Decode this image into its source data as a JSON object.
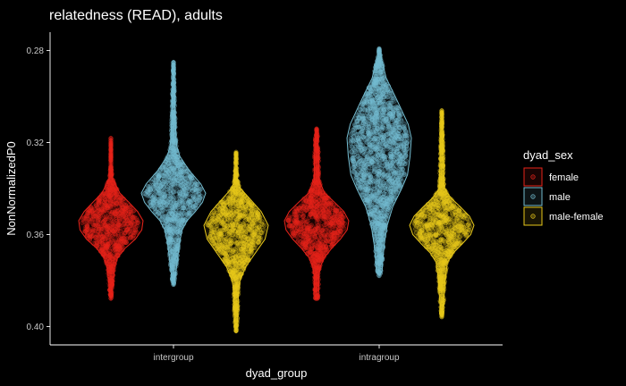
{
  "chart_data": {
    "type": "violin",
    "title": "relatedness (READ), adults",
    "xlabel": "dyad_group",
    "ylabel": "NonNormalizedP0",
    "y_reversed": true,
    "ylim": [
      0.272,
      0.408
    ],
    "yticks": [
      0.28,
      0.32,
      0.36,
      0.4
    ],
    "ytick_labels": [
      "0.28",
      "0.32",
      "0.36",
      "0.40"
    ],
    "categories": [
      "intergroup",
      "intragroup"
    ],
    "grid": false,
    "legend": {
      "title": "dyad_sex",
      "position": "right",
      "entries": [
        "female",
        "male",
        "male-female"
      ]
    },
    "series": [
      {
        "name": "female",
        "color": "#e8231a",
        "violins": [
          {
            "category": "intergroup",
            "profile": [
              [
                0.318,
                0.0
              ],
              [
                0.33,
                0.005
              ],
              [
                0.336,
                0.06
              ],
              [
                0.342,
                0.28
              ],
              [
                0.346,
                0.56
              ],
              [
                0.35,
                0.83
              ],
              [
                0.354,
                1.0
              ],
              [
                0.358,
                0.96
              ],
              [
                0.362,
                0.76
              ],
              [
                0.366,
                0.44
              ],
              [
                0.37,
                0.21
              ],
              [
                0.374,
                0.12
              ],
              [
                0.378,
                0.09
              ],
              [
                0.382,
                0.06
              ],
              [
                0.386,
                0.04
              ],
              [
                0.388,
                0.0
              ]
            ]
          },
          {
            "category": "intragroup",
            "profile": [
              [
                0.314,
                0.0
              ],
              [
                0.318,
                0.05
              ],
              [
                0.322,
                0.05
              ],
              [
                0.326,
                0.07
              ],
              [
                0.336,
                0.07
              ],
              [
                0.342,
                0.25
              ],
              [
                0.346,
                0.56
              ],
              [
                0.35,
                0.85
              ],
              [
                0.354,
                1.0
              ],
              [
                0.358,
                0.95
              ],
              [
                0.362,
                0.74
              ],
              [
                0.366,
                0.47
              ],
              [
                0.37,
                0.24
              ],
              [
                0.374,
                0.12
              ],
              [
                0.378,
                0.07
              ],
              [
                0.384,
                0.07
              ],
              [
                0.388,
                0.05
              ],
              [
                0.388,
                0.0
              ]
            ]
          }
        ]
      },
      {
        "name": "male",
        "color": "#74bcd0",
        "violins": [
          {
            "category": "intergroup",
            "profile": [
              [
                0.285,
                0.0
              ],
              [
                0.3,
                0.04
              ],
              [
                0.31,
                0.06
              ],
              [
                0.318,
                0.08
              ],
              [
                0.322,
                0.11
              ],
              [
                0.326,
                0.2
              ],
              [
                0.332,
                0.48
              ],
              [
                0.338,
                0.85
              ],
              [
                0.342,
                1.0
              ],
              [
                0.346,
                0.9
              ],
              [
                0.35,
                0.68
              ],
              [
                0.354,
                0.42
              ],
              [
                0.358,
                0.27
              ],
              [
                0.364,
                0.18
              ],
              [
                0.37,
                0.13
              ],
              [
                0.376,
                0.08
              ],
              [
                0.38,
                0.04
              ],
              [
                0.382,
                0.0
              ]
            ]
          },
          {
            "category": "intragroup",
            "profile": [
              [
                0.279,
                0.0
              ],
              [
                0.284,
                0.08
              ],
              [
                0.292,
                0.22
              ],
              [
                0.3,
                0.5
              ],
              [
                0.306,
                0.7
              ],
              [
                0.312,
                0.9
              ],
              [
                0.318,
                1.0
              ],
              [
                0.326,
                0.96
              ],
              [
                0.334,
                0.88
              ],
              [
                0.34,
                0.7
              ],
              [
                0.348,
                0.42
              ],
              [
                0.356,
                0.25
              ],
              [
                0.364,
                0.16
              ],
              [
                0.37,
                0.12
              ],
              [
                0.376,
                0.09
              ],
              [
                0.378,
                0.0
              ]
            ]
          }
        ]
      },
      {
        "name": "male-female",
        "color": "#e8c81a",
        "violins": [
          {
            "category": "intergroup",
            "profile": [
              [
                0.324,
                0.0
              ],
              [
                0.33,
                0.02
              ],
              [
                0.336,
                0.04
              ],
              [
                0.34,
                0.14
              ],
              [
                0.344,
                0.4
              ],
              [
                0.35,
                0.78
              ],
              [
                0.356,
                1.0
              ],
              [
                0.362,
                0.9
              ],
              [
                0.368,
                0.6
              ],
              [
                0.374,
                0.3
              ],
              [
                0.38,
                0.12
              ],
              [
                0.386,
                0.07
              ],
              [
                0.392,
                0.06
              ],
              [
                0.398,
                0.04
              ],
              [
                0.402,
                0.0
              ]
            ]
          },
          {
            "category": "intragroup",
            "profile": [
              [
                0.306,
                0.0
              ],
              [
                0.32,
                0.04
              ],
              [
                0.33,
                0.06
              ],
              [
                0.34,
                0.08
              ],
              [
                0.344,
                0.28
              ],
              [
                0.348,
                0.58
              ],
              [
                0.352,
                0.86
              ],
              [
                0.356,
                1.0
              ],
              [
                0.36,
                0.9
              ],
              [
                0.364,
                0.64
              ],
              [
                0.368,
                0.36
              ],
              [
                0.372,
                0.18
              ],
              [
                0.38,
                0.1
              ],
              [
                0.388,
                0.07
              ],
              [
                0.396,
                0.0
              ]
            ]
          }
        ]
      }
    ]
  }
}
